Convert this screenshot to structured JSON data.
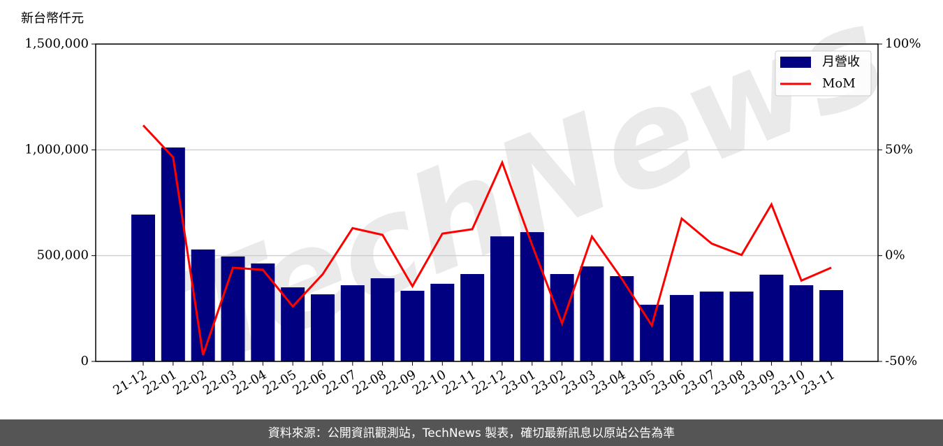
{
  "chart_data": {
    "type": "bar",
    "y_label": "新台幣仟元",
    "watermark": "TechNews",
    "categories": [
      "21-12",
      "22-01",
      "22-02",
      "22-03",
      "22-04",
      "22-05",
      "22-06",
      "22-07",
      "22-08",
      "22-09",
      "22-10",
      "22-11",
      "22-12",
      "23-01",
      "23-02",
      "23-03",
      "23-04",
      "23-05",
      "23-06",
      "23-07",
      "23-08",
      "23-09",
      "23-10",
      "23-11"
    ],
    "series": [
      {
        "name": "月營收",
        "type": "bar",
        "color": "#000080",
        "values": [
          694000,
          1011000,
          529000,
          496000,
          463000,
          350000,
          317000,
          360000,
          393000,
          334000,
          367000,
          413000,
          591000,
          611000,
          413000,
          449000,
          403000,
          268000,
          314000,
          330000,
          330000,
          410000,
          360000,
          337000
        ]
      },
      {
        "name": "MoM",
        "type": "line",
        "color": "#ff0000",
        "axis": "y2",
        "values": [
          61.6,
          46.5,
          -47,
          -5.7,
          -6.7,
          -24,
          -8.8,
          13,
          9.8,
          -14.5,
          10.4,
          12.5,
          44,
          5,
          -32,
          9,
          -11,
          -33,
          17.5,
          5.7,
          0.3,
          24.2,
          -11.8,
          -5.7
        ]
      }
    ],
    "ylim": [
      0,
      1500000
    ],
    "yticks": [
      0,
      {
        "value": 500000,
        "label": "500,000"
      },
      {
        "value": 1000000,
        "label": "1,000,000"
      },
      {
        "value": 1500000,
        "label": "1,500,000"
      }
    ],
    "y2lim": [
      -50,
      100
    ],
    "y2ticks": [
      {
        "value": -50,
        "label": "-50%"
      },
      {
        "value": 0,
        "label": "0%"
      },
      {
        "value": 50,
        "label": "50%"
      },
      {
        "value": 100,
        "label": "100%"
      }
    ],
    "grid": true,
    "legend": "upper right"
  },
  "footer": "資料來源：公開資訊觀測站，TechNews 製表，確切最新訊息以原站公告為準"
}
